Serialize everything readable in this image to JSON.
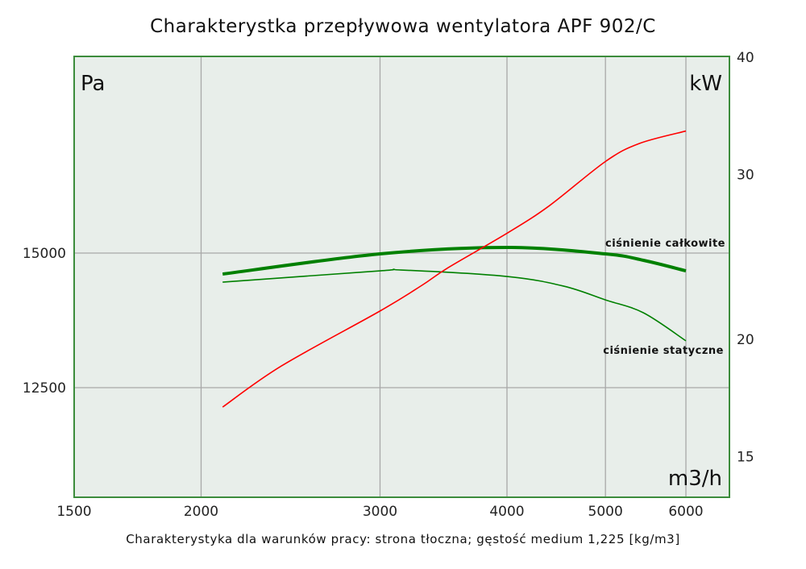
{
  "chart_data": {
    "type": "line",
    "title": "Charakterystka przepływowa wentylatora APF 902/C",
    "subtitle": "Charakterystyka dla warunków pracy: strona tłoczna; gęstość medium 1,225 [kg/m3]",
    "xlabel": "m3/h",
    "ylabel": "Pa",
    "y2label": "kW",
    "x_scale": "log",
    "xlim": [
      1500,
      6620
    ],
    "x_ticks": [
      "1500",
      "2000",
      "3000",
      "4000",
      "5000",
      "6000"
    ],
    "ylim": [
      10460,
      18650
    ],
    "y_ticks": [
      "12500",
      "15000"
    ],
    "y2_scale": "log",
    "y2lim": [
      13.6,
      40
    ],
    "y2_ticks": [
      "15",
      "20",
      "30",
      "40"
    ],
    "grid": true,
    "series": [
      {
        "name": "ciśnienie całkowite",
        "axis": "left",
        "color": "#008000",
        "width": "thick",
        "x": [
          2100,
          3000,
          4000,
          5000,
          5450,
          6000
        ],
        "y": [
          14610,
          14985,
          15105,
          14985,
          14865,
          14670
        ]
      },
      {
        "name": "ciśnienie statyczne",
        "axis": "left",
        "color": "#008000",
        "width": "thin",
        "x": [
          2100,
          3000,
          3150,
          4000,
          4550,
          5000,
          5450,
          6000
        ],
        "y": [
          14460,
          14670,
          14685,
          14565,
          14385,
          14130,
          13890,
          13370
        ]
      },
      {
        "axis": "right",
        "color": "#ff0000",
        "width": "thin",
        "x": [
          2100,
          2400,
          3000,
          3300,
          3500,
          4000,
          4400,
          5000,
          5400,
          6000
        ],
        "y": [
          16.9,
          18.7,
          21.4,
          22.8,
          23.8,
          25.9,
          27.7,
          30.9,
          32.3,
          33.3
        ]
      }
    ]
  },
  "colors": {
    "plot_bg": "#e8eeea",
    "frame": "#3c8c3c",
    "grid": "#a8a8a8"
  }
}
